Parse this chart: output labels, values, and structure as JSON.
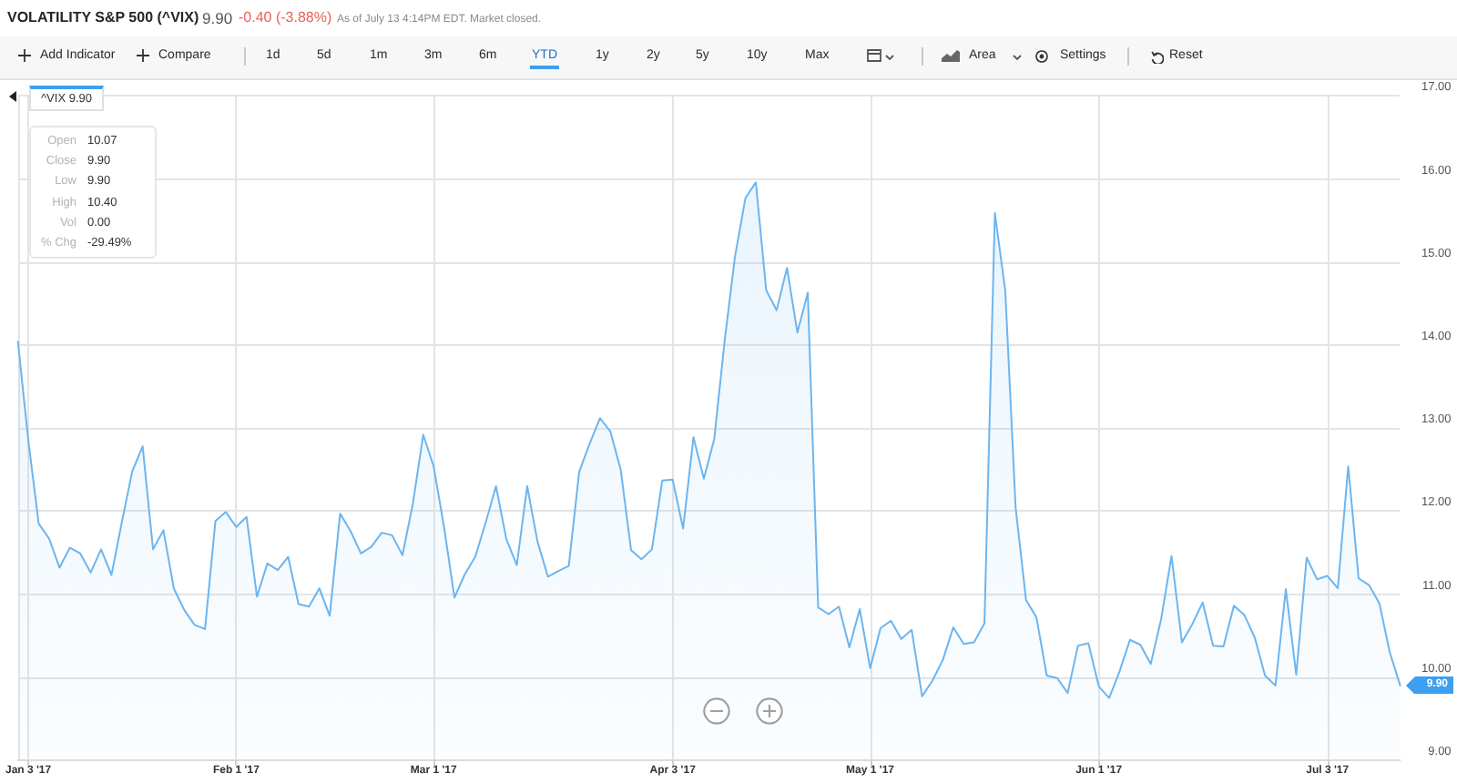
{
  "chart_data": {
    "type": "area",
    "title": "VOLATILITY S&P 500 (^VIX)",
    "subtitle": "As of July 13 4:14PM EDT. Market closed.",
    "categories": [
      null,
      "Jan 3 '17",
      null,
      null,
      null,
      null,
      null,
      null,
      null,
      null,
      null,
      null,
      null,
      null,
      null,
      null,
      null,
      null,
      null,
      null,
      null,
      "Feb 1 '17",
      null,
      null,
      null,
      null,
      null,
      null,
      null,
      null,
      null,
      null,
      null,
      null,
      null,
      null,
      null,
      null,
      null,
      null,
      "Mar 1 '17",
      null,
      null,
      null,
      null,
      null,
      null,
      null,
      null,
      null,
      null,
      null,
      null,
      null,
      null,
      null,
      null,
      null,
      null,
      null,
      null,
      null,
      null,
      "Apr 3 '17",
      null,
      null,
      null,
      null,
      null,
      null,
      null,
      null,
      null,
      null,
      null,
      null,
      null,
      null,
      null,
      null,
      null,
      null,
      "May 1 '17",
      null,
      null,
      null,
      null,
      null,
      null,
      null,
      null,
      null,
      null,
      null,
      null,
      null,
      null,
      null,
      null,
      null,
      null,
      null,
      null,
      null,
      "Jun 1 '17",
      null,
      null,
      null,
      null,
      null,
      null,
      null,
      null,
      null,
      null,
      null,
      null,
      null,
      null,
      null,
      null,
      null,
      null,
      null,
      null,
      null,
      "Jul 3 '17",
      null,
      null,
      null,
      null,
      null,
      null,
      null
    ],
    "values": [
      14.04,
      12.85,
      11.85,
      11.67,
      11.32,
      11.56,
      11.49,
      11.26,
      11.54,
      11.23,
      11.87,
      12.48,
      12.78,
      11.54,
      11.77,
      11.07,
      10.81,
      10.63,
      10.58,
      11.88,
      11.99,
      11.81,
      11.93,
      10.97,
      11.37,
      11.29,
      11.45,
      10.88,
      10.85,
      11.07,
      10.74,
      11.97,
      11.76,
      11.49,
      11.57,
      11.74,
      11.71,
      11.47,
      12.09,
      12.92,
      12.54,
      11.81,
      10.96,
      11.24,
      11.45,
      11.86,
      12.3,
      11.66,
      11.35,
      12.3,
      11.63,
      11.21,
      11.28,
      11.34,
      12.47,
      12.81,
      13.12,
      12.96,
      12.5,
      11.53,
      11.42,
      11.54,
      12.37,
      12.38,
      11.79,
      12.89,
      12.39,
      12.87,
      14.05,
      15.07,
      15.77,
      15.96,
      14.66,
      14.42,
      14.93,
      14.15,
      14.63,
      10.84,
      10.76,
      10.85,
      10.36,
      10.82,
      10.11,
      10.59,
      10.68,
      10.46,
      10.57,
      9.77,
      9.96,
      10.21,
      10.6,
      10.4,
      10.42,
      10.65,
      15.59,
      14.66,
      12.04,
      10.93,
      10.72,
      10.02,
      9.99,
      9.81,
      10.38,
      10.41,
      9.89,
      9.75,
      10.07,
      10.45,
      10.39,
      10.16,
      10.7,
      11.46,
      10.42,
      10.64,
      10.9,
      10.38,
      10.37,
      10.86,
      10.75,
      10.48,
      10.02,
      9.9,
      11.06,
      10.03,
      11.44,
      11.18,
      11.22,
      11.07,
      12.54,
      11.19,
      11.11,
      10.89,
      10.3,
      9.9
    ],
    "color": "#6cb5f0",
    "ylim": [
      9,
      17
    ],
    "yticks": [
      {
        "value": 9,
        "label": "9.00"
      },
      {
        "value": 10,
        "label": "10.00"
      },
      {
        "value": 11,
        "label": "11.00"
      },
      {
        "value": 12,
        "label": "12.00"
      },
      {
        "value": 13,
        "label": "13.00"
      },
      {
        "value": 14,
        "label": "14.00"
      },
      {
        "value": 15,
        "label": "15.00"
      },
      {
        "value": 16,
        "label": "16.00"
      },
      {
        "value": 17,
        "label": "17.00"
      }
    ],
    "grid": true,
    "marker": "none",
    "annotations": [
      "9.90",
      "-0.40 (-3.88%)",
      "Add Indicator",
      "Compare",
      "1d",
      "5d",
      "1m",
      "3m",
      "6m",
      "YTD",
      "1y",
      "2y",
      "5y",
      "10y",
      "Max",
      "Area",
      "Settings",
      "Reset",
      "^VIX 9.90",
      "Open",
      "10.07",
      "Close",
      "9.90",
      "Low",
      "9.90",
      "High",
      "10.40",
      "Vol",
      "0.00",
      "% Chg",
      "-29.49%",
      "9.90"
    ]
  }
}
